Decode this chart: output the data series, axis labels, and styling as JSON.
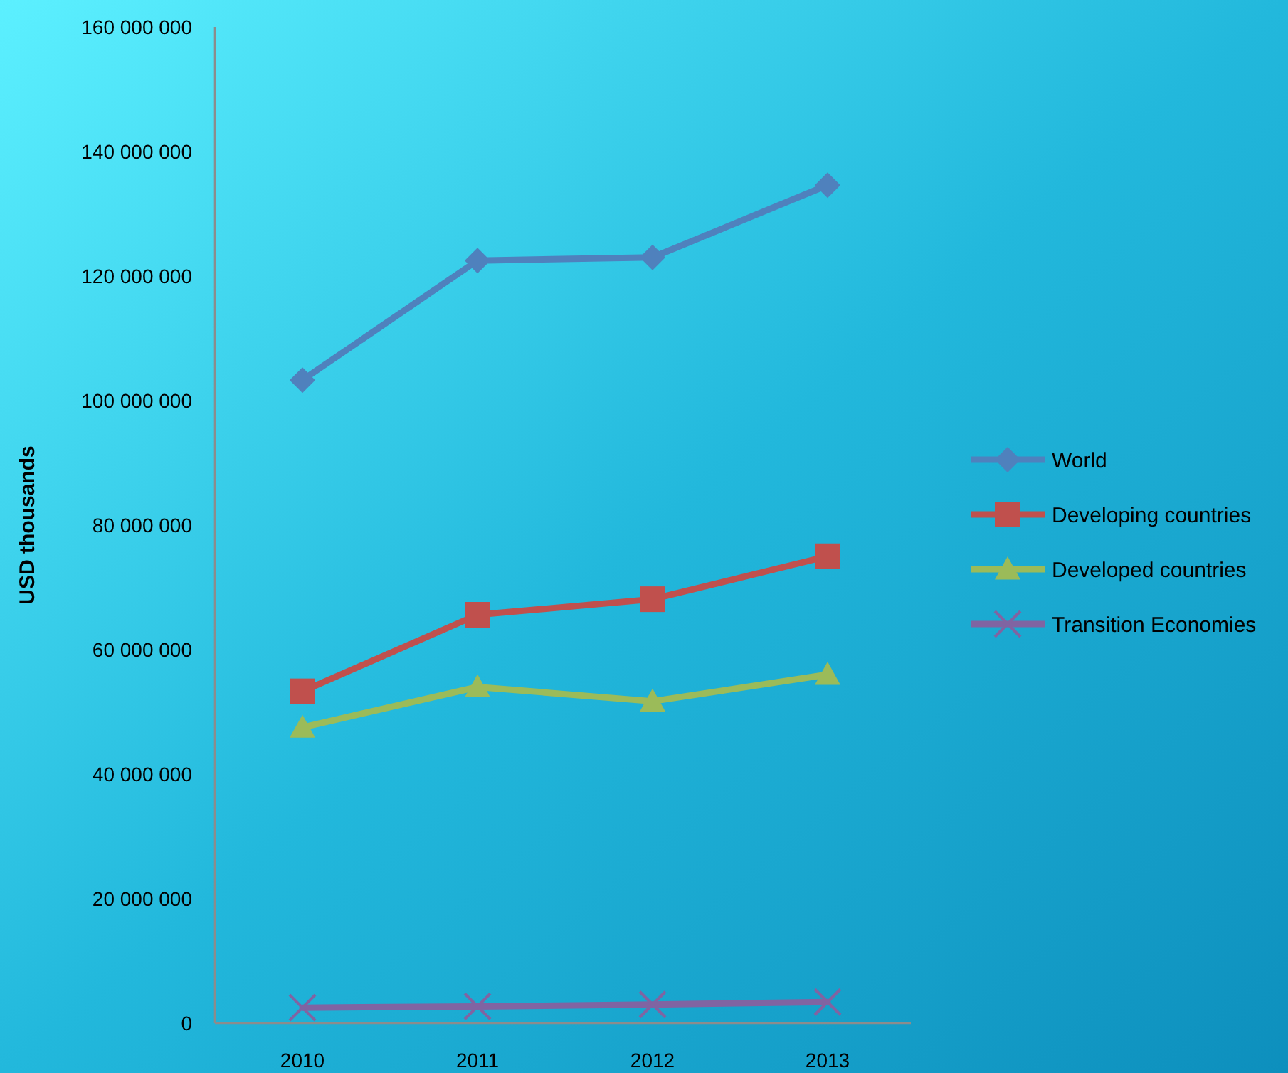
{
  "chart_data": {
    "type": "line",
    "ylabel": "USD thousands",
    "categories": [
      "2010",
      "2011",
      "2012",
      "2013"
    ],
    "series": [
      {
        "name": "World",
        "color": "#4f81bd",
        "marker": "diamond",
        "values": [
          103300000,
          122500000,
          123000000,
          134600000
        ]
      },
      {
        "name": "Developing countries",
        "color": "#c0504d",
        "marker": "square",
        "values": [
          53300000,
          65600000,
          68100000,
          75000000
        ]
      },
      {
        "name": "Developed countries",
        "color": "#9bbb59",
        "marker": "triangle",
        "values": [
          47500000,
          54000000,
          51700000,
          56000000
        ]
      },
      {
        "name": "Transition Economies",
        "color": "#8064a2",
        "marker": "cross",
        "values": [
          2500000,
          2700000,
          3000000,
          3400000
        ]
      }
    ],
    "ylim": [
      0,
      160000000
    ],
    "yticks": [
      {
        "value": 0,
        "label": "0"
      },
      {
        "value": 20000000,
        "label": "20 000 000"
      },
      {
        "value": 40000000,
        "label": "40 000 000"
      },
      {
        "value": 60000000,
        "label": "60 000 000"
      },
      {
        "value": 80000000,
        "label": "80 000 000"
      },
      {
        "value": 100000000,
        "label": "100 000 000"
      },
      {
        "value": 120000000,
        "label": "120 000 000"
      },
      {
        "value": 140000000,
        "label": "140 000 000"
      },
      {
        "value": 160000000,
        "label": "160 000 000"
      }
    ],
    "grid": false,
    "legend": "right",
    "line_style": "solid"
  }
}
